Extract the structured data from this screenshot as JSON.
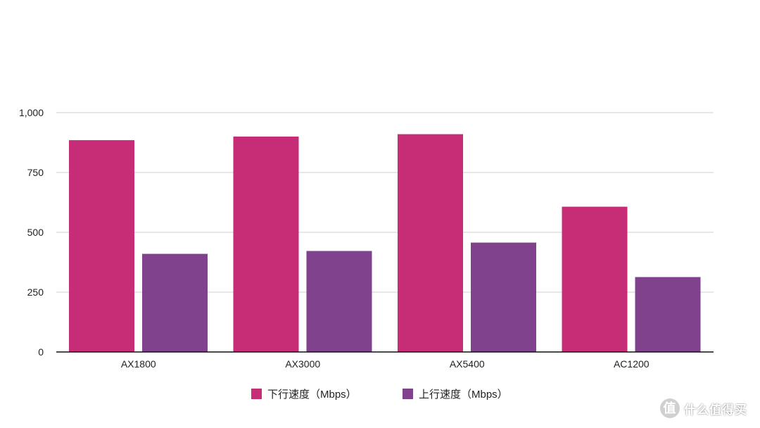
{
  "chart_data": {
    "type": "bar",
    "categories": [
      "AX1800",
      "AX3000",
      "AX5400",
      "AC1200"
    ],
    "series": [
      {
        "name": "下行速度（Mbps）",
        "color": "#c72d77",
        "values": [
          885,
          900,
          910,
          607
        ]
      },
      {
        "name": "上行速度（Mbps）",
        "color": "#81428d",
        "values": [
          410,
          422,
          457,
          313
        ]
      }
    ],
    "ylim": [
      0,
      1000
    ],
    "yticks": [
      0,
      250,
      500,
      750,
      1000
    ],
    "ytick_labels": [
      "0",
      "250",
      "500",
      "750",
      "1,000"
    ],
    "grid": true,
    "legend_position": "bottom",
    "title": "",
    "xlabel": "",
    "ylabel": ""
  },
  "watermark": {
    "text": "什么值得买",
    "logo": "值"
  }
}
